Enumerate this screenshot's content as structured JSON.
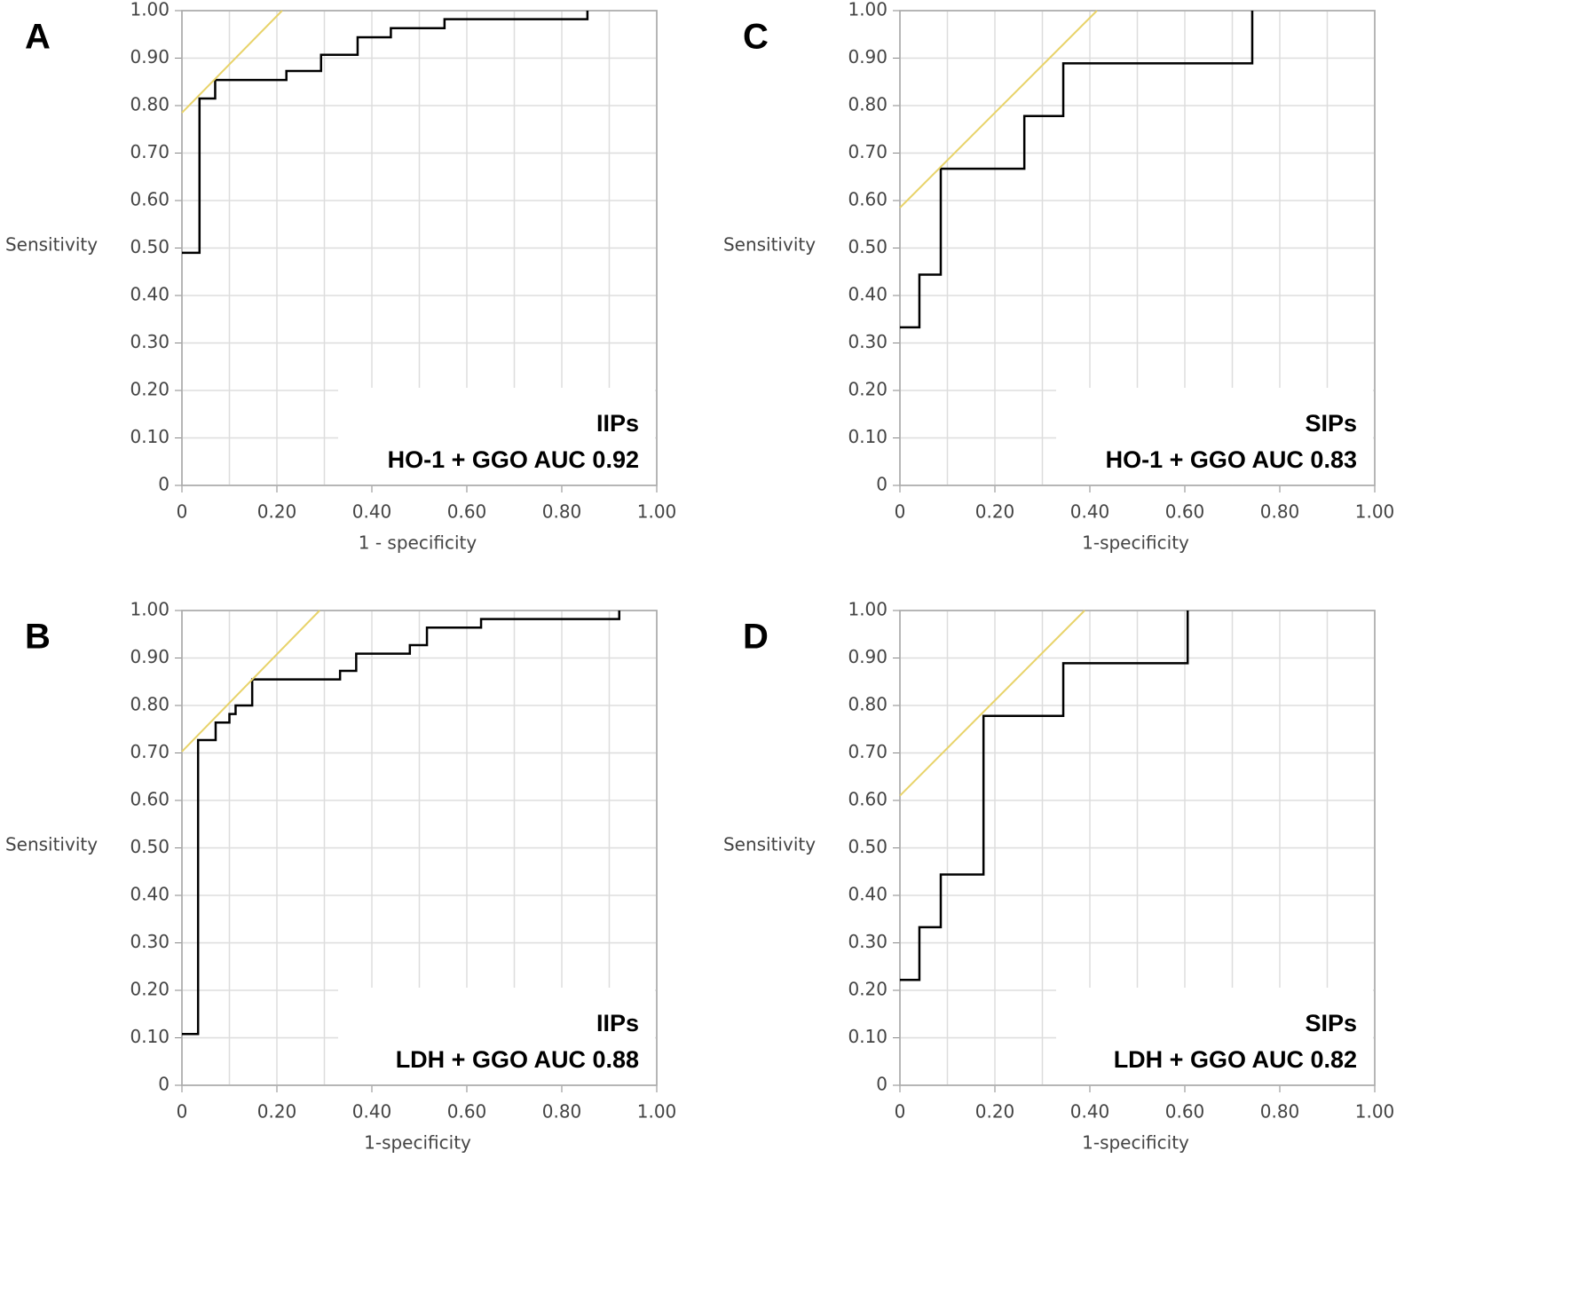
{
  "chart_data": [
    {
      "type": "line",
      "panel": "A",
      "xlabel": "1 - specificity",
      "ylabel": "Sensitivity",
      "annotations": [
        "IIPs",
        "HO-1 + GGO AUC 0.92"
      ],
      "xlim": [
        0,
        1
      ],
      "ylim": [
        0,
        1
      ],
      "xticks": [
        0,
        {
          "value": 0.2,
          "label": "0.20"
        },
        {
          "value": 0.4,
          "label": "0.40"
        },
        {
          "value": 0.6,
          "label": "0.60"
        },
        {
          "value": 0.8,
          "label": "0.80"
        },
        {
          "value": 1,
          "label": "1.00"
        }
      ],
      "xgrid": [
        0.1,
        0.3,
        0.5,
        0.7,
        0.9
      ],
      "yticks": [
        0,
        {
          "value": 0.1,
          "label": "0.10"
        },
        {
          "value": 0.2,
          "label": "0.20"
        },
        {
          "value": 0.3,
          "label": "0.30"
        },
        {
          "value": 0.4,
          "label": "0.40"
        },
        {
          "value": 0.5,
          "label": "0.50"
        },
        {
          "value": 0.6,
          "label": "0.60"
        },
        {
          "value": 0.7,
          "label": "0.70"
        },
        {
          "value": 0.8,
          "label": "0.80"
        },
        {
          "value": 0.9,
          "label": "0.90"
        },
        {
          "value": 1,
          "label": "1.00"
        }
      ],
      "grid": true,
      "series": [
        {
          "color": "#000000",
          "x": [
            0,
            0.037,
            0.037,
            0.07,
            0.07,
            0.22,
            0.22,
            0.293,
            0.293,
            0.37,
            0.37,
            0.44,
            0.44,
            0.553,
            0.553,
            0.854,
            0.854
          ],
          "values": [
            0.49,
            0.49,
            0.815,
            0.815,
            0.854,
            0.854,
            0.873,
            0.873,
            0.907,
            0.907,
            0.944,
            0.944,
            0.963,
            0.963,
            0.982,
            0.982,
            1.0
          ]
        },
        {
          "color": "#e8d36a",
          "x": [
            0,
            0.211
          ],
          "values": [
            0.785,
            1.0
          ]
        }
      ]
    },
    {
      "type": "line",
      "panel": "C",
      "xlabel": "1-specificity",
      "ylabel": "Sensitivity",
      "annotations": [
        "SIPs",
        "HO-1 + GGO AUC 0.83"
      ],
      "xlim": [
        0,
        1
      ],
      "ylim": [
        0,
        1
      ],
      "xticks": [
        0,
        {
          "value": 0.2,
          "label": "0.20"
        },
        {
          "value": 0.4,
          "label": "0.40"
        },
        {
          "value": 0.6,
          "label": "0.60"
        },
        {
          "value": 0.8,
          "label": "0.80"
        },
        {
          "value": 1,
          "label": "1.00"
        }
      ],
      "xgrid": [
        0.1,
        0.3,
        0.5,
        0.7,
        0.9
      ],
      "yticks": [
        0,
        {
          "value": 0.1,
          "label": "0.10"
        },
        {
          "value": 0.2,
          "label": "0.20"
        },
        {
          "value": 0.3,
          "label": "0.30"
        },
        {
          "value": 0.4,
          "label": "0.40"
        },
        {
          "value": 0.5,
          "label": "0.50"
        },
        {
          "value": 0.6,
          "label": "0.60"
        },
        {
          "value": 0.7,
          "label": "0.70"
        },
        {
          "value": 0.8,
          "label": "0.80"
        },
        {
          "value": 0.9,
          "label": "0.90"
        },
        {
          "value": 1,
          "label": "1.00"
        }
      ],
      "grid": true,
      "series": [
        {
          "color": "#000000",
          "x": [
            0,
            0.041,
            0.041,
            0.086,
            0.086,
            0.262,
            0.262,
            0.344,
            0.344,
            0.742,
            0.742
          ],
          "values": [
            0.333,
            0.333,
            0.444,
            0.444,
            0.667,
            0.667,
            0.778,
            0.778,
            0.889,
            0.889,
            1.0
          ]
        },
        {
          "color": "#e8d36a",
          "x": [
            0,
            0.415
          ],
          "values": [
            0.585,
            1.0
          ]
        }
      ]
    },
    {
      "type": "line",
      "panel": "B",
      "xlabel": "1-specificity",
      "ylabel": "Sensitivity",
      "annotations": [
        "IIPs",
        "LDH + GGO AUC 0.88"
      ],
      "xlim": [
        0,
        1
      ],
      "ylim": [
        0,
        1
      ],
      "xticks": [
        0,
        {
          "value": 0.2,
          "label": "0.20"
        },
        {
          "value": 0.4,
          "label": "0.40"
        },
        {
          "value": 0.6,
          "label": "0.60"
        },
        {
          "value": 0.8,
          "label": "0.80"
        },
        {
          "value": 1,
          "label": "1.00"
        }
      ],
      "xgrid": [
        0.1,
        0.3,
        0.5,
        0.7,
        0.9
      ],
      "yticks": [
        0,
        {
          "value": 0.1,
          "label": "0.10"
        },
        {
          "value": 0.2,
          "label": "0.20"
        },
        {
          "value": 0.3,
          "label": "0.30"
        },
        {
          "value": 0.4,
          "label": "0.40"
        },
        {
          "value": 0.5,
          "label": "0.50"
        },
        {
          "value": 0.6,
          "label": "0.60"
        },
        {
          "value": 0.7,
          "label": "0.70"
        },
        {
          "value": 0.8,
          "label": "0.80"
        },
        {
          "value": 0.9,
          "label": "0.90"
        },
        {
          "value": 1,
          "label": "1.00"
        }
      ],
      "grid": true,
      "series": [
        {
          "color": "#000000",
          "x": [
            0,
            0.034,
            0.034,
            0.071,
            0.071,
            0.1,
            0.1,
            0.113,
            0.113,
            0.148,
            0.148,
            0.333,
            0.333,
            0.367,
            0.367,
            0.48,
            0.48,
            0.516,
            0.516,
            0.63,
            0.63,
            0.921,
            0.921
          ],
          "values": [
            0.108,
            0.108,
            0.727,
            0.727,
            0.764,
            0.764,
            0.782,
            0.782,
            0.8,
            0.8,
            0.855,
            0.855,
            0.873,
            0.873,
            0.909,
            0.909,
            0.927,
            0.927,
            0.964,
            0.964,
            0.982,
            0.982,
            1.0
          ]
        },
        {
          "color": "#e8d36a",
          "x": [
            0,
            0.29
          ],
          "values": [
            0.703,
            1.0
          ]
        }
      ]
    },
    {
      "type": "line",
      "panel": "D",
      "xlabel": "1-specificity",
      "ylabel": "Sensitivity",
      "annotations": [
        "SIPs",
        "LDH + GGO AUC 0.82"
      ],
      "xlim": [
        0,
        1
      ],
      "ylim": [
        0,
        1
      ],
      "xticks": [
        0,
        {
          "value": 0.2,
          "label": "0.20"
        },
        {
          "value": 0.4,
          "label": "0.40"
        },
        {
          "value": 0.6,
          "label": "0.60"
        },
        {
          "value": 0.8,
          "label": "0.80"
        },
        {
          "value": 1,
          "label": "1.00"
        }
      ],
      "xgrid": [
        0.1,
        0.3,
        0.5,
        0.7,
        0.9
      ],
      "yticks": [
        0,
        {
          "value": 0.1,
          "label": "0.10"
        },
        {
          "value": 0.2,
          "label": "0.20"
        },
        {
          "value": 0.3,
          "label": "0.30"
        },
        {
          "value": 0.4,
          "label": "0.40"
        },
        {
          "value": 0.5,
          "label": "0.50"
        },
        {
          "value": 0.6,
          "label": "0.60"
        },
        {
          "value": 0.7,
          "label": "0.70"
        },
        {
          "value": 0.8,
          "label": "0.80"
        },
        {
          "value": 0.9,
          "label": "0.90"
        },
        {
          "value": 1,
          "label": "1.00"
        }
      ],
      "grid": true,
      "series": [
        {
          "color": "#000000",
          "x": [
            0,
            0.041,
            0.041,
            0.086,
            0.086,
            0.176,
            0.176,
            0.344,
            0.344,
            0.606,
            0.606
          ],
          "values": [
            0.222,
            0.222,
            0.333,
            0.333,
            0.444,
            0.444,
            0.778,
            0.778,
            0.889,
            0.889,
            1.0
          ]
        },
        {
          "color": "#e8d36a",
          "x": [
            0,
            0.389
          ],
          "values": [
            0.61,
            1.0
          ]
        }
      ]
    }
  ]
}
